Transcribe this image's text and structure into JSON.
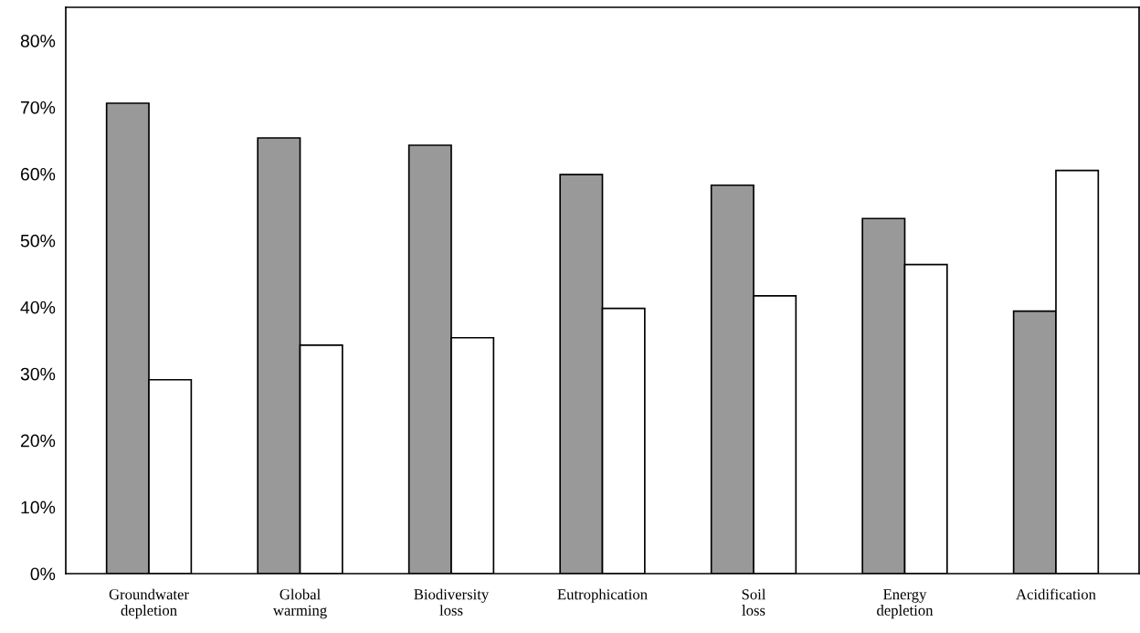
{
  "chart_data": {
    "type": "bar",
    "categories": [
      "Groundwater\ndepletion",
      "Global\nwarming",
      "Biodiversity\nloss",
      "Eutrophication",
      "Soil\nloss",
      "Energy\ndepletion",
      "Acidification"
    ],
    "series": [
      {
        "color": "#999999",
        "values": [
          70.6,
          65.4,
          64.3,
          59.9,
          58.3,
          53.3,
          39.4
        ]
      },
      {
        "color": "#ffffff",
        "values": [
          29.1,
          34.3,
          35.4,
          39.8,
          41.7,
          46.4,
          60.5
        ]
      }
    ],
    "ylim": [
      0,
      85
    ],
    "yticks": [
      {
        "value": 0,
        "label": "0%"
      },
      {
        "value": 10,
        "label": "10%"
      },
      {
        "value": 20,
        "label": "20%"
      },
      {
        "value": 30,
        "label": "30%"
      },
      {
        "value": 40,
        "label": "40%"
      },
      {
        "value": 50,
        "label": "50%"
      },
      {
        "value": 60,
        "label": "60%"
      },
      {
        "value": 70,
        "label": "70%"
      },
      {
        "value": 80,
        "label": "80%"
      }
    ],
    "grid": false,
    "legend": false
  }
}
